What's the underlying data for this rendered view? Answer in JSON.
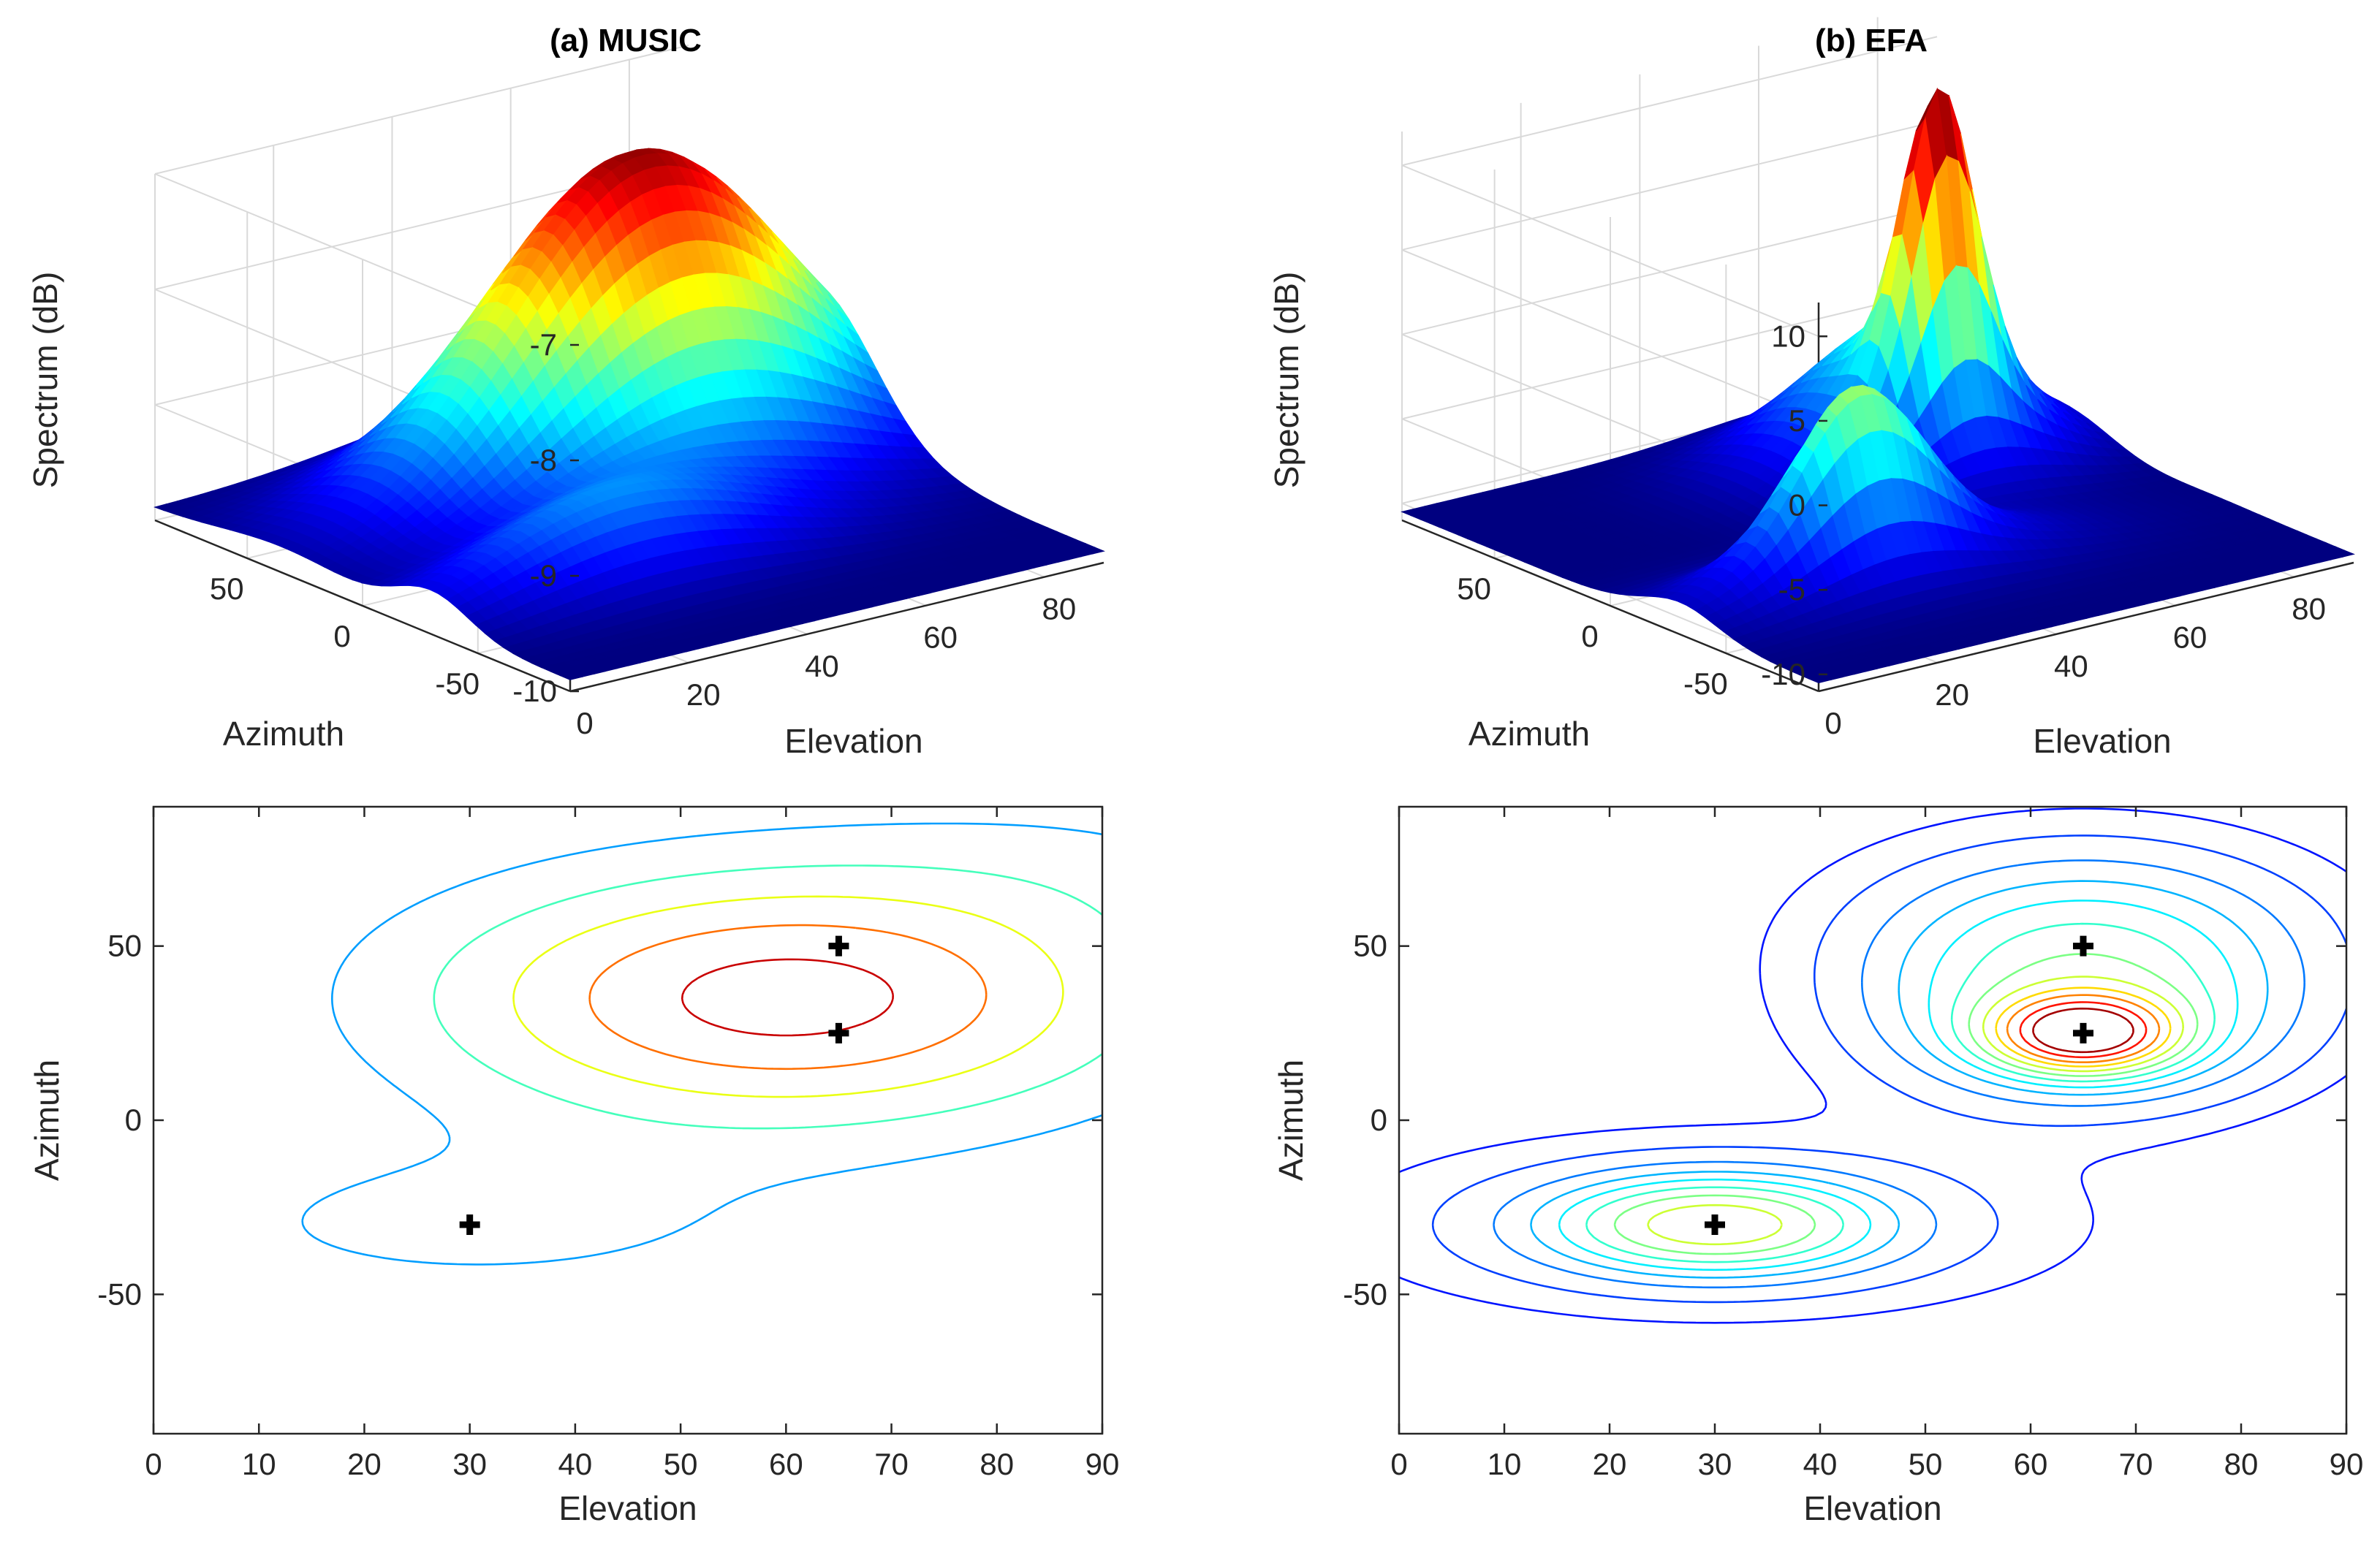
{
  "figure": {
    "panels": [
      {
        "id": "a",
        "title": "(a) MUSIC"
      },
      {
        "id": "b",
        "title": "(b) EFA"
      }
    ]
  },
  "chart_data": [
    {
      "type": "surface",
      "panel": "a",
      "title": "(a) MUSIC",
      "xlabel": "Elevation",
      "ylabel": "Azimuth",
      "zlabel": "Spectrum (dB)",
      "xlim": [
        0,
        90
      ],
      "ylim": [
        -90,
        90
      ],
      "zlim": [
        -10,
        -7
      ],
      "xticks": [
        "0",
        "20",
        "40",
        "60",
        "80"
      ],
      "yticks": [
        "50",
        "0",
        "-50"
      ],
      "zticks": [
        "-7",
        "-8",
        "-9",
        "-10"
      ],
      "colormap": "jet",
      "peak": {
        "elevation": 60,
        "azimuth": 35,
        "value": -7.05
      },
      "floor": -9.9
    },
    {
      "type": "surface",
      "panel": "b",
      "title": "(b) EFA",
      "xlabel": "Elevation",
      "ylabel": "Azimuth",
      "zlabel": "Spectrum (dB)",
      "xlim": [
        0,
        90
      ],
      "ylim": [
        -90,
        90
      ],
      "zlim": [
        -11,
        12
      ],
      "xticks": [
        "0",
        "20",
        "40",
        "60",
        "80"
      ],
      "yticks": [
        "50",
        "0",
        "-50"
      ],
      "zticks": [
        "10",
        "5",
        "0",
        "-5",
        "-10"
      ],
      "colormap": "jet",
      "peaks": [
        {
          "elevation": 65,
          "azimuth": 25,
          "value": 11.5
        },
        {
          "elevation": 65,
          "azimuth": 50,
          "value": 4.0
        },
        {
          "elevation": 30,
          "azimuth": -30,
          "value": 0.0
        }
      ],
      "floor": -10.5
    },
    {
      "type": "contour",
      "panel": "a",
      "xlabel": "Elevation",
      "ylabel": "Azimuth",
      "xlim": [
        0,
        90
      ],
      "ylim": [
        -90,
        90
      ],
      "xticks": [
        "0",
        "10",
        "20",
        "30",
        "40",
        "50",
        "60",
        "70",
        "80",
        "90"
      ],
      "yticks": [
        "50",
        "0",
        "-50"
      ],
      "colormap": "jet",
      "levels": 6,
      "true_sources": [
        {
          "elevation": 65,
          "azimuth": 50
        },
        {
          "elevation": 65,
          "azimuth": 25
        },
        {
          "elevation": 30,
          "azimuth": -30
        }
      ]
    },
    {
      "type": "contour",
      "panel": "b",
      "xlabel": "Elevation",
      "ylabel": "Azimuth",
      "xlim": [
        0,
        90
      ],
      "ylim": [
        -90,
        90
      ],
      "xticks": [
        "0",
        "10",
        "20",
        "30",
        "40",
        "50",
        "60",
        "70",
        "80",
        "90"
      ],
      "yticks": [
        "50",
        "0",
        "-50"
      ],
      "colormap": "jet",
      "levels": 12,
      "true_sources": [
        {
          "elevation": 65,
          "azimuth": 50
        },
        {
          "elevation": 65,
          "azimuth": 25
        },
        {
          "elevation": 30,
          "azimuth": -30
        }
      ]
    }
  ]
}
